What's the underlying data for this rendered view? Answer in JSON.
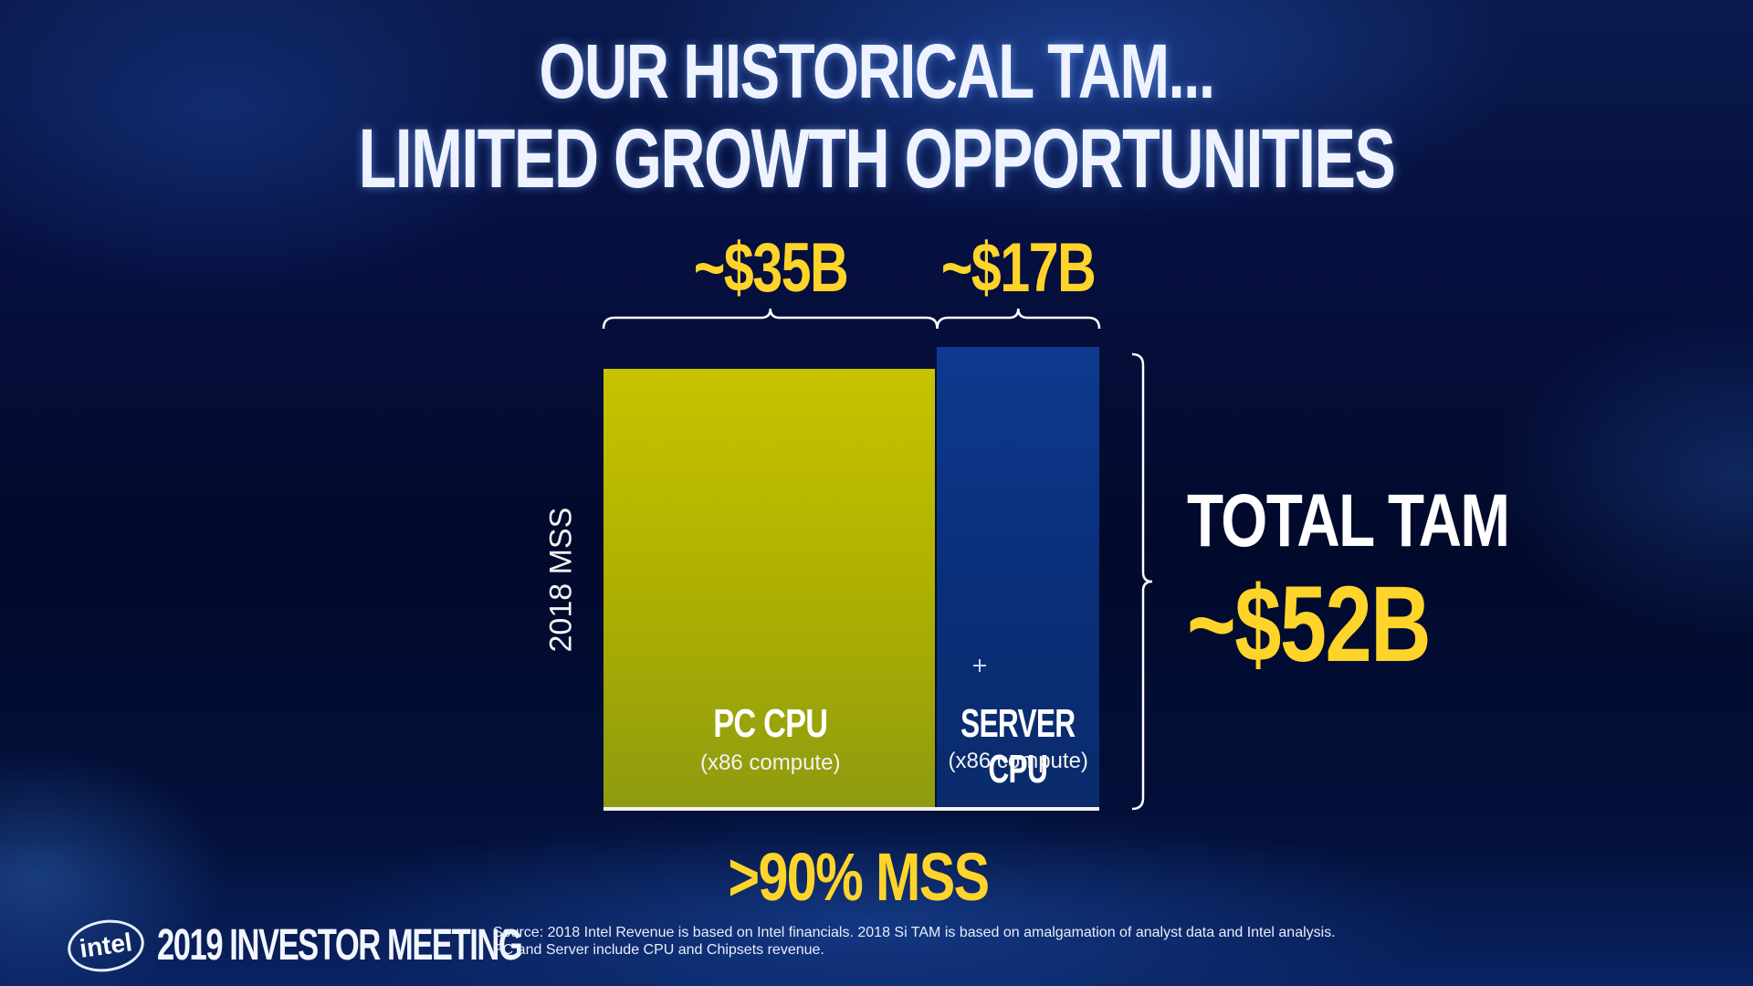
{
  "title": {
    "line1": "OUR HISTORICAL TAM...",
    "line2": "LIMITED GROWTH OPPORTUNITIES"
  },
  "chart_data": {
    "type": "bar",
    "categories": [
      "PC CPU",
      "SERVER CPU"
    ],
    "category_sublabels": [
      "(x86 compute)",
      "(x86 compute)"
    ],
    "values": [
      35,
      17
    ],
    "value_labels": [
      "~$35B",
      "~$17B"
    ],
    "unit": "$B",
    "ylabel": "2018 MSS",
    "colors": [
      "#c6c300",
      "#0d3a8e"
    ],
    "total": {
      "label": "TOTAL TAM",
      "value": 52,
      "value_label": "~$52B"
    },
    "footnote_value": ">90% MSS"
  },
  "footer": {
    "logo": "intel",
    "event": "2019 INVESTOR MEETING",
    "source_line1": "Source: 2018 Intel Revenue is based on Intel financials. 2018 Si TAM is based on amalgamation of analyst data and Intel analysis.",
    "source_line2": "PC and Server include CPU and Chipsets revenue."
  },
  "colors": {
    "accent_yellow": "#ffd42a",
    "background": "#020b2a"
  }
}
